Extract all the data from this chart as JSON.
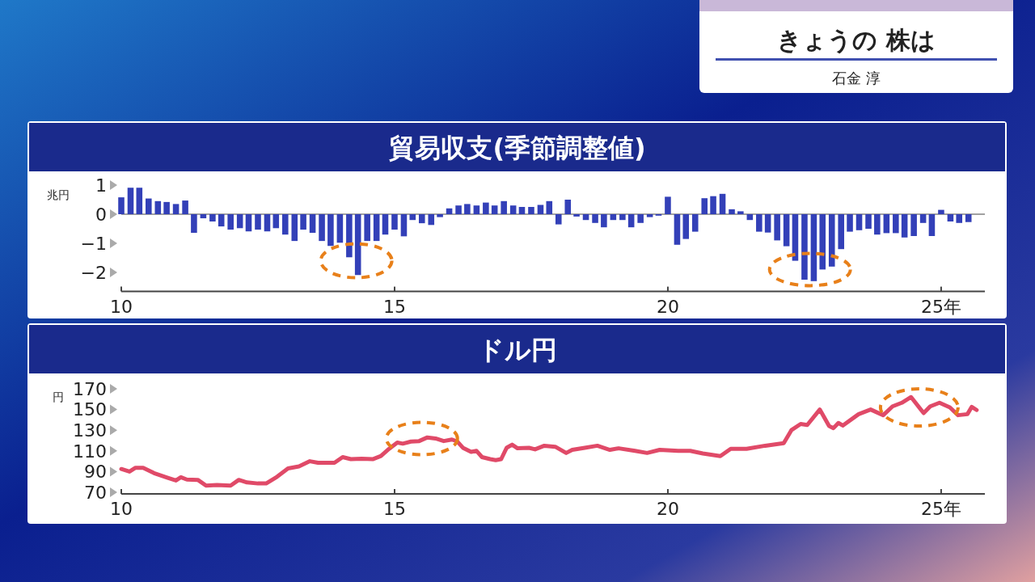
{
  "chart_data": [
    {
      "type": "other",
      "title": "きょうの 株は",
      "subtitle": "石金 淳"
    },
    {
      "type": "bar",
      "title": "貿易収支(季節調整値)",
      "ylabel": "兆円",
      "color": "#3340b8",
      "x": [
        10,
        10.17,
        10.33,
        10.5,
        10.67,
        10.83,
        11,
        11.17,
        11.33,
        11.5,
        11.67,
        11.83,
        12,
        12.17,
        12.33,
        12.5,
        12.67,
        12.83,
        13,
        13.17,
        13.33,
        13.5,
        13.67,
        13.83,
        14,
        14.17,
        14.33,
        14.5,
        14.67,
        14.83,
        15,
        15.17,
        15.33,
        15.5,
        15.67,
        15.83,
        16,
        16.17,
        16.33,
        16.5,
        16.67,
        16.83,
        17,
        17.17,
        17.33,
        17.5,
        17.67,
        17.83,
        18,
        18.17,
        18.33,
        18.5,
        18.67,
        18.83,
        19,
        19.17,
        19.33,
        19.5,
        19.67,
        19.83,
        20,
        20.17,
        20.33,
        20.5,
        20.67,
        20.83,
        21,
        21.17,
        21.33,
        21.5,
        21.67,
        21.83,
        22,
        22.17,
        22.33,
        22.5,
        22.67,
        22.83,
        23,
        23.17,
        23.33,
        23.5,
        23.67,
        23.83,
        24,
        24.17,
        24.33,
        24.5,
        24.67,
        24.83,
        25,
        25.17,
        25.33,
        25.5
      ],
      "values": [
        0.58,
        0.91,
        0.91,
        0.54,
        0.45,
        0.42,
        0.35,
        0.47,
        -0.64,
        -0.14,
        -0.25,
        -0.42,
        -0.53,
        -0.48,
        -0.59,
        -0.53,
        -0.59,
        -0.48,
        -0.7,
        -0.92,
        -0.53,
        -0.64,
        -0.92,
        -1.09,
        -0.98,
        -1.48,
        -2.09,
        -0.92,
        -0.92,
        -0.7,
        -0.53,
        -0.76,
        -0.2,
        -0.31,
        -0.37,
        -0.1,
        0.2,
        0.3,
        0.35,
        0.3,
        0.4,
        0.3,
        0.45,
        0.3,
        0.25,
        0.25,
        0.32,
        0.45,
        -0.35,
        0.5,
        -0.08,
        -0.2,
        -0.3,
        -0.45,
        -0.2,
        -0.2,
        -0.45,
        -0.3,
        -0.1,
        -0.05,
        0.6,
        -1.05,
        -0.85,
        -0.6,
        0.55,
        0.62,
        0.7,
        0.17,
        0.1,
        -0.2,
        -0.6,
        -0.63,
        -0.9,
        -1.1,
        -1.6,
        -2.25,
        -2.3,
        -1.9,
        -1.8,
        -1.2,
        -0.6,
        -0.55,
        -0.5,
        -0.7,
        -0.65,
        -0.65,
        -0.8,
        -0.75,
        -0.3,
        -0.75,
        0.15,
        -0.25,
        -0.3,
        -0.27
      ],
      "xlim": [
        10,
        25.8
      ],
      "xticks": [
        10,
        15,
        20,
        {
          "value": 25,
          "label": "25年"
        }
      ],
      "ylim": [
        -2.6,
        1
      ],
      "yticks": [
        1,
        0,
        {
          "value": -1,
          "label": "−1"
        },
        {
          "value": -2,
          "label": "−2"
        }
      ]
    },
    {
      "type": "line",
      "title": "ドル円",
      "ylabel": "円",
      "color": "#e04a68",
      "x": [
        10,
        10.15,
        10.26,
        10.4,
        10.6,
        10.85,
        11,
        11.09,
        11.2,
        11.4,
        11.55,
        11.75,
        12,
        12.15,
        12.3,
        12.5,
        12.65,
        12.85,
        13.05,
        13.25,
        13.45,
        13.6,
        13.9,
        14.05,
        14.2,
        14.4,
        14.6,
        14.75,
        14.9,
        15.05,
        15.15,
        15.3,
        15.45,
        15.6,
        15.75,
        15.9,
        16.05,
        16.15,
        16.25,
        16.4,
        16.5,
        16.6,
        16.75,
        16.85,
        16.95,
        17.05,
        17.15,
        17.25,
        17.46,
        17.57,
        17.74,
        17.94,
        18.14,
        18.25,
        18.48,
        18.71,
        18.94,
        19.1,
        19.4,
        19.62,
        19.85,
        20.19,
        20.41,
        20.64,
        20.96,
        21.15,
        21.44,
        21.78,
        22.12,
        22.26,
        22.43,
        22.55,
        22.78,
        22.95,
        23.03,
        23.12,
        23.2,
        23.49,
        23.71,
        23.94,
        24.11,
        24.28,
        24.45,
        24.68,
        24.8,
        24.97,
        25.16,
        25.31,
        25.48,
        25.56,
        25.65
      ],
      "values": [
        92.5,
        90,
        93.7,
        93.7,
        88.5,
        84,
        81.4,
        84.5,
        82.3,
        82,
        76.5,
        77,
        76.5,
        82,
        79.5,
        78.5,
        78.5,
        85,
        93,
        95,
        100,
        98.5,
        98.5,
        104,
        102,
        102.5,
        102,
        105,
        112,
        118,
        117,
        119,
        119.5,
        123,
        122,
        119.5,
        121,
        119,
        113,
        109,
        110,
        104,
        102,
        101,
        102,
        113,
        116,
        112.5,
        113,
        111.5,
        115,
        114,
        108,
        111,
        113,
        115,
        111,
        112.5,
        110,
        108,
        111,
        110,
        110,
        107.5,
        105,
        112,
        112,
        115,
        117.5,
        130,
        136,
        135,
        150,
        134,
        132,
        137,
        134.5,
        145.5,
        150,
        144.5,
        153,
        156.5,
        162,
        146.5,
        153,
        156.5,
        152,
        144.5,
        145.5,
        152.5,
        149.5
      ],
      "xlim": [
        10,
        25.8
      ],
      "xticks": [
        10,
        15,
        20,
        {
          "value": 25,
          "label": "25年"
        }
      ],
      "ylim": [
        70,
        170
      ],
      "yticks": [
        70,
        90,
        110,
        130,
        150,
        170
      ]
    }
  ]
}
